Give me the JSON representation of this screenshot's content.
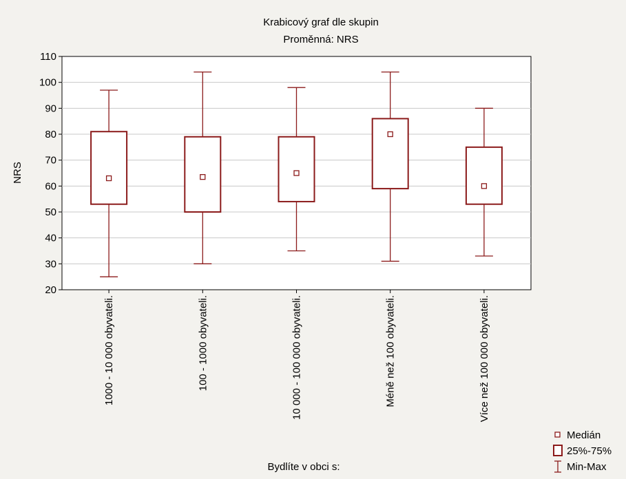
{
  "chart_data": {
    "type": "box",
    "title": "Krabicový graf dle skupin",
    "subtitle": "Proměnná: NRS",
    "xlabel": "Bydlíte v obci s:",
    "ylabel": "NRS",
    "ylim": [
      20,
      110
    ],
    "yticks": [
      20,
      30,
      40,
      50,
      60,
      70,
      80,
      90,
      100,
      110
    ],
    "grid": true,
    "legend_position": "bottom-right",
    "categories": [
      "1000 - 10 000 obyvateli.",
      "100 - 1000 obyvateli.",
      "10 000 - 100 000 obyvateli.",
      "Méně než 100 obyvateli.",
      "Více než 100 000 obyvateli."
    ],
    "series": [
      {
        "median": [
          63,
          63.5,
          65,
          80,
          60
        ],
        "q1": [
          53,
          50,
          54,
          59,
          53
        ],
        "q3": [
          81,
          79,
          79,
          86,
          75
        ],
        "min": [
          25,
          30,
          35,
          31,
          33
        ],
        "max": [
          97,
          104,
          98,
          104,
          90
        ]
      }
    ],
    "legend": {
      "median": "Medián",
      "box": "25%-75%",
      "whisker": "Min-Max"
    }
  },
  "colors": {
    "background": "#f3f2ee",
    "plot_background": "#ffffff",
    "box_stroke": "#8b1a1a",
    "grid": "#c8c8c8"
  }
}
